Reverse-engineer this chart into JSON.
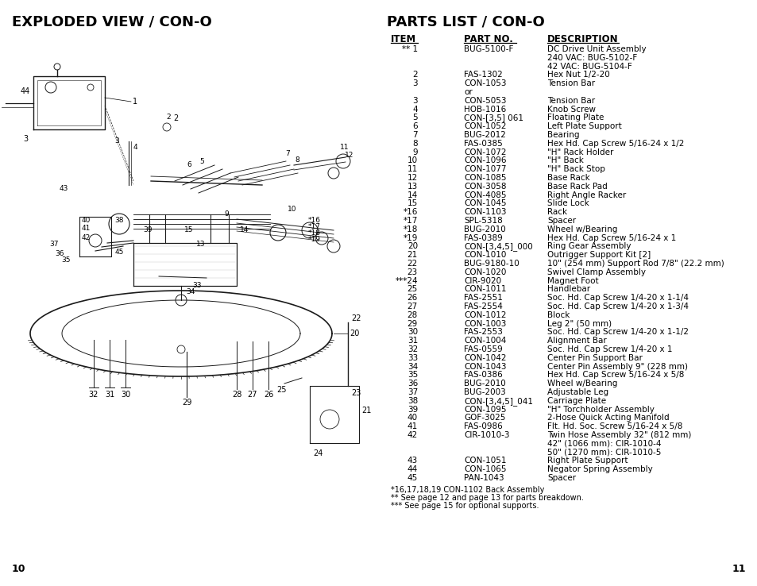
{
  "title_left": "EXPLODED VIEW / CON-O",
  "title_right": "PARTS LIST / CON-O",
  "page_left": "10",
  "page_right": "11",
  "col_headers": [
    "ITEM",
    "PART NO.",
    "DESCRIPTION"
  ],
  "parts_list": [
    [
      "** 1",
      "BUG-5100-F",
      "DC Drive Unit Assembly\n240 VAC: BUG-5102-F\n42 VAC: BUG-5104-F"
    ],
    [
      "2",
      "FAS-1302",
      "Hex Nut 1/2-20"
    ],
    [
      "3",
      "CON-1053",
      "Tension Bar"
    ],
    [
      "",
      "or",
      ""
    ],
    [
      "3",
      "CON-5053",
      "Tension Bar"
    ],
    [
      "4",
      "HOB-1016",
      "Knob Screw"
    ],
    [
      "5",
      "CON-[3,5] 061",
      "Floating Plate"
    ],
    [
      "6",
      "CON-1052",
      "Left Plate Support"
    ],
    [
      "7",
      "BUG-2012",
      "Bearing"
    ],
    [
      "8",
      "FAS-0385",
      "Hex Hd. Cap Screw 5/16-24 x 1/2"
    ],
    [
      "9",
      "CON-1072",
      "\"H\" Rack Holder"
    ],
    [
      "10",
      "CON-1096",
      "\"H\" Back"
    ],
    [
      "11",
      "CON-1077",
      "\"H\" Back Stop"
    ],
    [
      "12",
      "CON-1085",
      "Base Rack"
    ],
    [
      "13",
      "CON-3058",
      "Base Rack Pad"
    ],
    [
      "14",
      "CON-4085",
      "Right Angle Racker"
    ],
    [
      "15",
      "CON-1045",
      "Slide Lock"
    ],
    [
      "*16",
      "CON-1103",
      "Rack"
    ],
    [
      "*17",
      "SPL-5318",
      "Spacer"
    ],
    [
      "*18",
      "BUG-2010",
      "Wheel w/Bearing"
    ],
    [
      "*19",
      "FAS-0389",
      "Hex Hd. Cap Screw 5/16-24 x 1"
    ],
    [
      "20",
      "CON-[3,4,5]_000",
      "Ring Gear Assembly"
    ],
    [
      "21",
      "CON-1010",
      "Outrigger Support Kit [2]"
    ],
    [
      "22",
      "BUG-9180-10",
      "10\" (254 mm) Support Rod 7/8\" (22.2 mm)"
    ],
    [
      "23",
      "CON-1020",
      "Swivel Clamp Assembly"
    ],
    [
      "***24",
      "CIR-9020",
      "Magnet Foot"
    ],
    [
      "25",
      "CON-1011",
      "Handlebar"
    ],
    [
      "26",
      "FAS-2551",
      "Soc. Hd. Cap Screw 1/4-20 x 1-1/4"
    ],
    [
      "27",
      "FAS-2554",
      "Soc. Hd. Cap Screw 1/4-20 x 1-3/4"
    ],
    [
      "28",
      "CON-1012",
      "Block"
    ],
    [
      "29",
      "CON-1003",
      "Leg 2\" (50 mm)"
    ],
    [
      "30",
      "FAS-2553",
      "Soc. Hd. Cap Screw 1/4-20 x 1-1/2"
    ],
    [
      "31",
      "CON-1004",
      "Alignment Bar"
    ],
    [
      "32",
      "FAS-0559",
      "Soc. Hd. Cap Screw 1/4-20 x 1"
    ],
    [
      "33",
      "CON-1042",
      "Center Pin Support Bar"
    ],
    [
      "34",
      "CON-1043",
      "Center Pin Assembly 9\" (228 mm)"
    ],
    [
      "35",
      "FAS-0386",
      "Hex Hd. Cap Screw 5/16-24 x 5/8"
    ],
    [
      "36",
      "BUG-2010",
      "Wheel w/Bearing"
    ],
    [
      "37",
      "BUG-2003",
      "Adjustable Leg"
    ],
    [
      "38",
      "CON-[3,4,5]_041",
      "Carriage Plate"
    ],
    [
      "39",
      "CON-1095",
      "\"H\" Torchholder Assembly"
    ],
    [
      "40",
      "GOF-3025",
      "2-Hose Quick Acting Manifold"
    ],
    [
      "41",
      "FAS-0986",
      "Flt. Hd. Soc. Screw 5/16-24 x 5/8"
    ],
    [
      "42",
      "CIR-1010-3",
      "Twin Hose Assembly 32\" (812 mm)\n42\" (1066 mm): CIR-1010-4\n50\" (1270 mm): CIR-1010-5"
    ],
    [
      "43",
      "CON-1051",
      "Right Plate Support"
    ],
    [
      "44",
      "CON-1065",
      "Negator Spring Assembly"
    ],
    [
      "45",
      "PAN-1043",
      "Spacer"
    ]
  ],
  "footnotes": [
    "*16,17,18,19 CON-1102 Back Assembly",
    "** See page 12 and page 13 for parts breakdown.",
    "*** See page 15 for optional supports."
  ],
  "bg_color": "#ffffff",
  "text_color": "#000000",
  "title_fontsize": 13,
  "body_fontsize": 7.5,
  "header_fontsize": 8.5
}
